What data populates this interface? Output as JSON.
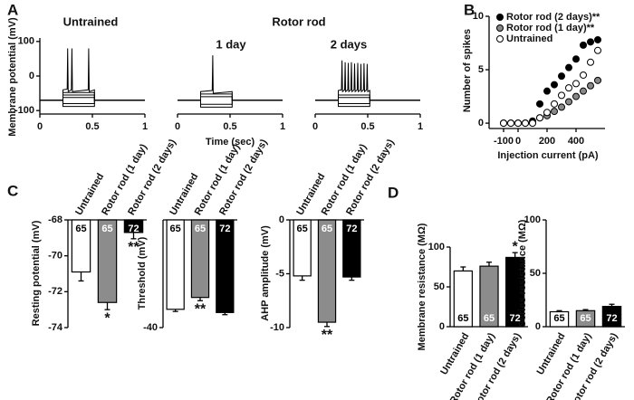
{
  "panel_labels": [
    "A",
    "B",
    "C",
    "D"
  ],
  "chart_data": [
    {
      "type": "line",
      "title": "Untrained",
      "ylabel": "Membrane potential (mV)",
      "xlim": [
        0,
        1
      ],
      "xticks": [
        0,
        0.5,
        1
      ],
      "ylim": [
        -110,
        110
      ],
      "yticks": [
        -100,
        0,
        100
      ],
      "series": [
        {
          "color": "#000000",
          "x": [
            0,
            0.22,
            0.22,
            0.52,
            0.52,
            1
          ],
          "values": [
            -70,
            -70,
            -88,
            -88,
            -70,
            -70
          ]
        },
        {
          "color": "#000000",
          "x": [
            0,
            0.22,
            0.22,
            0.52,
            0.52,
            1
          ],
          "values": [
            -70,
            -70,
            -80,
            -80,
            -70,
            -70
          ]
        },
        {
          "color": "#000000",
          "x": [
            0,
            0.22,
            0.22,
            0.52,
            0.52,
            1
          ],
          "values": [
            -70,
            -70,
            -62,
            -62,
            -70,
            -70
          ]
        },
        {
          "color": "#000000",
          "x": [
            0,
            0.22,
            0.22,
            0.52,
            0.52,
            1
          ],
          "values": [
            -70,
            -70,
            -55,
            -55,
            -70,
            -70
          ]
        },
        {
          "color": "#000000",
          "x": [
            0,
            0.22,
            0.22,
            0.52,
            0.52,
            1
          ],
          "values": [
            -70,
            -70,
            -48,
            -48,
            -70,
            -70
          ]
        },
        {
          "color": "#000000",
          "x": [
            0,
            0.22,
            0.22,
            0.26,
            0.265,
            0.27,
            0.3,
            0.305,
            0.31,
            0.46,
            0.465,
            0.47,
            0.52,
            0.52,
            1
          ],
          "values": [
            -70,
            -70,
            -40,
            -38,
            80,
            -45,
            -40,
            80,
            -45,
            -40,
            80,
            -45,
            -40,
            -70,
            -70
          ]
        }
      ]
    },
    {
      "type": "line",
      "supertitle": "Rotor rod",
      "title": "1 day",
      "xlabel": "Time (sec)",
      "xlim": [
        0,
        1
      ],
      "xticks": [
        0,
        0.5,
        1
      ],
      "ylim": [
        -110,
        110
      ],
      "series": [
        {
          "color": "#000000",
          "x": [
            0,
            0.22,
            0.22,
            0.52,
            0.52,
            1
          ],
          "values": [
            -70,
            -70,
            -90,
            -90,
            -70,
            -70
          ]
        },
        {
          "color": "#000000",
          "x": [
            0,
            0.22,
            0.22,
            0.52,
            0.52,
            1
          ],
          "values": [
            -70,
            -70,
            -82,
            -82,
            -70,
            -70
          ]
        },
        {
          "color": "#000000",
          "x": [
            0,
            0.22,
            0.22,
            0.52,
            0.52,
            1
          ],
          "values": [
            -70,
            -70,
            -60,
            -60,
            -70,
            -70
          ]
        },
        {
          "color": "#000000",
          "x": [
            0,
            0.22,
            0.22,
            0.52,
            0.52,
            1
          ],
          "values": [
            -70,
            -70,
            -52,
            -52,
            -70,
            -70
          ]
        },
        {
          "color": "#000000",
          "x": [
            0,
            0.22,
            0.22,
            0.33,
            0.335,
            0.34,
            0.52,
            0.52,
            1
          ],
          "values": [
            -70,
            -70,
            -45,
            -42,
            60,
            -50,
            -45,
            -70,
            -70
          ]
        }
      ]
    },
    {
      "type": "line",
      "title": "2 days",
      "xlim": [
        0,
        1
      ],
      "xticks": [
        0,
        0.5,
        1
      ],
      "ylim": [
        -110,
        110
      ],
      "series": [
        {
          "color": "#000000",
          "x": [
            0,
            0.22,
            0.22,
            0.52,
            0.52,
            1
          ],
          "values": [
            -70,
            -70,
            -88,
            -88,
            -70,
            -70
          ]
        },
        {
          "color": "#000000",
          "x": [
            0,
            0.22,
            0.22,
            0.52,
            0.52,
            1
          ],
          "values": [
            -70,
            -70,
            -80,
            -80,
            -70,
            -70
          ]
        },
        {
          "color": "#000000",
          "x": [
            0,
            0.22,
            0.22,
            0.52,
            0.52,
            1
          ],
          "values": [
            -70,
            -70,
            -62,
            -62,
            -70,
            -70
          ]
        },
        {
          "color": "#000000",
          "x": [
            0,
            0.22,
            0.22,
            0.52,
            0.52,
            1
          ],
          "values": [
            -70,
            -70,
            -55,
            -55,
            -70,
            -70
          ]
        },
        {
          "color": "#000000",
          "x": [
            0,
            0.22,
            0.22,
            0.25,
            0.255,
            0.26,
            0.28,
            0.285,
            0.29,
            0.31,
            0.315,
            0.32,
            0.34,
            0.345,
            0.35,
            0.37,
            0.375,
            0.38,
            0.4,
            0.405,
            0.41,
            0.43,
            0.435,
            0.44,
            0.46,
            0.465,
            0.47,
            0.49,
            0.495,
            0.5,
            0.52,
            0.52,
            1
          ],
          "values": [
            -70,
            -70,
            -42,
            -40,
            45,
            -45,
            -40,
            40,
            -45,
            -40,
            38,
            -45,
            -40,
            40,
            -45,
            -40,
            36,
            -45,
            -40,
            38,
            -45,
            -40,
            35,
            -45,
            -40,
            37,
            -45,
            -40,
            35,
            -45,
            -42,
            -70,
            -70
          ]
        }
      ]
    },
    {
      "type": "scatter",
      "xlabel": "Injection current (pA)",
      "ylabel": "Number of spikes",
      "legend": "upper left",
      "xlim": [
        -200,
        600
      ],
      "xticks": [
        -100,
        0,
        200,
        400
      ],
      "ylim": [
        -0.5,
        10
      ],
      "yticks": [
        0,
        5,
        10
      ],
      "x": [
        -100,
        -50,
        0,
        50,
        100,
        150,
        200,
        250,
        300,
        350,
        400,
        450,
        500,
        550
      ],
      "series": [
        {
          "name": "Rotor rod (2 days)**",
          "color": "#000000",
          "values": [
            0,
            0,
            0,
            0,
            0.2,
            1.8,
            3,
            3.6,
            4.4,
            5.2,
            6,
            7.3,
            7.6,
            7.8
          ]
        },
        {
          "name": "Rotor rod (1 day)**",
          "color": "#888888",
          "values": [
            0,
            0,
            0,
            0,
            0,
            0.5,
            0.7,
            1.1,
            1.5,
            2,
            2.5,
            3,
            3.5,
            4
          ]
        },
        {
          "name": "Untrained",
          "color": "#ffffff",
          "values": [
            0,
            0,
            0,
            0,
            0,
            0.5,
            1,
            1.8,
            2.6,
            3.3,
            3.7,
            4.5,
            5.7,
            6.8
          ]
        }
      ]
    },
    {
      "type": "bar",
      "ylabel": "Resting potential (mV)",
      "categories": [
        "Untrained",
        "Rotor rod (1 day)",
        "Rotor rod (2 days)"
      ],
      "colors": [
        "#ffffff",
        "#8c8c8c",
        "#000000"
      ],
      "values": [
        -70.9,
        -72.6,
        -68.7
      ],
      "errors": [
        0.5,
        0.4,
        0.35
      ],
      "n_labels": [
        "65",
        "65",
        "72"
      ],
      "ylim": [
        -74,
        -68
      ],
      "yticks": [
        -74,
        -72,
        -70,
        -68
      ],
      "annotations": [
        {
          "index": 1,
          "text": "*"
        },
        {
          "index": 2,
          "text": "**"
        }
      ]
    },
    {
      "type": "bar",
      "ylabel": "Threshold (mV)",
      "categories": [
        "Untrained",
        "Rotor rod (1 day)",
        "Rotor rod (2 days)"
      ],
      "colors": [
        "#ffffff",
        "#8c8c8c",
        "#000000"
      ],
      "values": [
        -38.3,
        -37.2,
        -38.6
      ],
      "errors": [
        0.2,
        0.3,
        0.2
      ],
      "n_labels": [
        "65",
        "65",
        "72"
      ],
      "ylim": [
        -40,
        -30
      ],
      "yticks": [
        -40
      ],
      "annotations": [
        {
          "index": 1,
          "text": "**"
        }
      ]
    },
    {
      "type": "bar",
      "ylabel": "AHP amplitude (mV)",
      "categories": [
        "Untrained",
        "Rotor rod (1 day)",
        "Rotor rod (2 days)"
      ],
      "colors": [
        "#ffffff",
        "#8c8c8c",
        "#000000"
      ],
      "values": [
        -5.2,
        -9.5,
        -5.3
      ],
      "errors": [
        0.4,
        0.4,
        0.3
      ],
      "n_labels": [
        "65",
        "65",
        "72"
      ],
      "ylim": [
        -10,
        0
      ],
      "yticks": [
        -10,
        -5,
        0
      ],
      "annotations": [
        {
          "index": 1,
          "text": "**"
        }
      ]
    },
    {
      "type": "bar",
      "ylabel": "Membrane resistance (MΩ)",
      "categories": [
        "Untrained",
        "Rotor rod (1 day)",
        "Rotor rod (2 days)"
      ],
      "colors": [
        "#ffffff",
        "#8c8c8c",
        "#000000"
      ],
      "values": [
        70,
        76,
        87
      ],
      "errors": [
        5,
        5,
        6
      ],
      "n_labels": [
        "65",
        "65",
        "72"
      ],
      "ylim": [
        0,
        100
      ],
      "yticks": [
        0,
        50,
        100
      ],
      "annotations": [
        {
          "index": 2,
          "text": "*"
        }
      ]
    },
    {
      "type": "bar",
      "ylabel": "Series resistance (MΩ)",
      "categories": [
        "Untrained",
        "Rotor rod (1 day)",
        "Rotor rod (2 days)"
      ],
      "colors": [
        "#ffffff",
        "#8c8c8c",
        "#000000"
      ],
      "values": [
        14,
        15,
        19
      ],
      "errors": [
        1,
        1,
        2
      ],
      "n_labels": [
        "65",
        "65",
        "72"
      ],
      "ylim": [
        0,
        100
      ],
      "yticks": [
        0,
        50,
        100
      ]
    }
  ]
}
